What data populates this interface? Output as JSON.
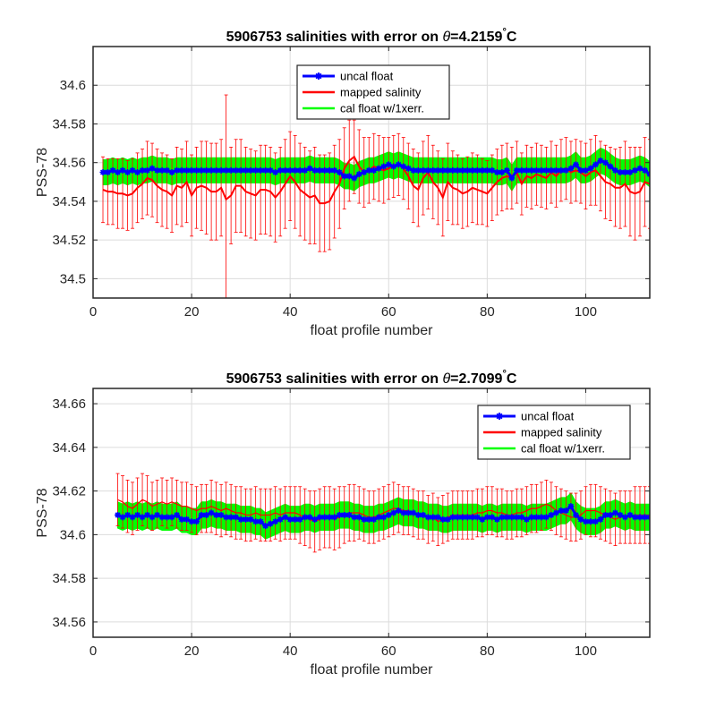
{
  "chart_data": [
    {
      "type": "line",
      "title_prefix": "5906753 salinities with error on ",
      "title_theta": "θ",
      "title_value": "=4.2159",
      "title_degree": "°",
      "title_unit": "C",
      "xlabel": "float profile number",
      "ylabel": "PSS-78",
      "xlim": [
        0,
        113
      ],
      "ylim": [
        34.49,
        34.62
      ],
      "xticks": [
        "0",
        "20",
        "40",
        "60",
        "80",
        "100"
      ],
      "yticks": [
        "34.5",
        "34.52",
        "34.54",
        "34.56",
        "34.58",
        "34.6"
      ],
      "grid": true,
      "legend_position": "top-center",
      "x": [
        2,
        3,
        4,
        5,
        6,
        7,
        8,
        9,
        10,
        11,
        12,
        13,
        14,
        15,
        16,
        17,
        18,
        19,
        20,
        21,
        22,
        23,
        24,
        25,
        26,
        27,
        28,
        29,
        30,
        31,
        32,
        33,
        34,
        35,
        36,
        37,
        38,
        39,
        40,
        41,
        42,
        43,
        44,
        45,
        46,
        47,
        48,
        49,
        50,
        51,
        52,
        53,
        54,
        55,
        56,
        57,
        58,
        59,
        60,
        61,
        62,
        63,
        64,
        65,
        66,
        67,
        68,
        69,
        70,
        71,
        72,
        73,
        74,
        75,
        76,
        77,
        78,
        79,
        80,
        81,
        82,
        83,
        84,
        85,
        86,
        87,
        88,
        89,
        90,
        91,
        92,
        93,
        94,
        95,
        96,
        97,
        98,
        99,
        100,
        101,
        102,
        103,
        104,
        105,
        106,
        107,
        108,
        109,
        110,
        111,
        112,
        113
      ],
      "series": [
        {
          "name": "uncal float",
          "color": "#0000ff",
          "values": [
            34.555,
            34.555,
            34.556,
            34.555,
            34.556,
            34.555,
            34.556,
            34.555,
            34.556,
            34.556,
            34.557,
            34.556,
            34.556,
            34.556,
            34.555,
            34.556,
            34.556,
            34.556,
            34.556,
            34.556,
            34.556,
            34.556,
            34.556,
            34.556,
            34.556,
            34.556,
            34.556,
            34.556,
            34.556,
            34.556,
            34.556,
            34.556,
            34.556,
            34.556,
            34.556,
            34.555,
            34.556,
            34.556,
            34.556,
            34.556,
            34.556,
            34.556,
            34.557,
            34.556,
            34.556,
            34.556,
            34.556,
            34.556,
            34.555,
            34.553,
            34.553,
            34.552,
            34.554,
            34.555,
            34.556,
            34.556,
            34.557,
            34.558,
            34.559,
            34.558,
            34.559,
            34.558,
            34.557,
            34.556,
            34.556,
            34.556,
            34.556,
            34.556,
            34.556,
            34.556,
            34.556,
            34.556,
            34.556,
            34.556,
            34.556,
            34.556,
            34.556,
            34.556,
            34.556,
            34.556,
            34.555,
            34.555,
            34.556,
            34.552,
            34.556,
            34.556,
            34.556,
            34.556,
            34.556,
            34.556,
            34.556,
            34.556,
            34.556,
            34.556,
            34.556,
            34.557,
            34.559,
            34.556,
            34.556,
            34.557,
            34.559,
            34.561,
            34.56,
            34.558,
            34.556,
            34.555,
            34.555,
            34.555,
            34.556,
            34.557,
            34.556,
            34.554
          ],
          "band_halfwidth": 0.0065
        },
        {
          "name": "mapped salinity",
          "color": "#ff0000",
          "values": [
            34.546,
            34.545,
            34.545,
            34.544,
            34.544,
            34.543,
            34.544,
            34.547,
            34.549,
            34.552,
            34.551,
            34.548,
            34.546,
            34.545,
            34.543,
            34.548,
            34.547,
            34.55,
            34.543,
            34.547,
            34.548,
            34.547,
            34.545,
            34.545,
            34.547,
            34.541,
            34.543,
            34.548,
            34.548,
            34.545,
            34.544,
            34.543,
            34.546,
            34.546,
            34.545,
            34.542,
            34.545,
            34.549,
            34.553,
            34.55,
            34.546,
            34.544,
            34.542,
            34.543,
            34.539,
            34.539,
            34.54,
            34.545,
            34.549,
            34.557,
            34.561,
            34.563,
            34.558,
            34.555,
            34.556,
            34.558,
            34.557,
            34.556,
            34.557,
            34.558,
            34.559,
            34.557,
            34.553,
            34.548,
            34.546,
            34.552,
            34.555,
            34.55,
            34.547,
            34.542,
            34.55,
            34.547,
            34.546,
            34.544,
            34.545,
            34.547,
            34.546,
            34.545,
            34.544,
            34.547,
            34.55,
            34.552,
            34.553,
            34.552,
            34.555,
            34.549,
            34.553,
            34.552,
            34.554,
            34.553,
            34.552,
            34.555,
            34.553,
            34.556,
            34.557,
            34.555,
            34.556,
            34.555,
            34.553,
            34.555,
            34.556,
            34.553,
            34.55,
            34.549,
            34.547,
            34.547,
            34.549,
            34.545,
            34.544,
            34.545,
            34.55,
            34.549
          ],
          "error": [
            0.017,
            0.017,
            0.017,
            0.018,
            0.018,
            0.018,
            0.018,
            0.018,
            0.018,
            0.019,
            0.019,
            0.019,
            0.019,
            0.019,
            0.019,
            0.02,
            0.02,
            0.021,
            0.021,
            0.021,
            0.023,
            0.024,
            0.025,
            0.025,
            0.025,
            0.024,
            0.025,
            0.024,
            0.024,
            0.023,
            0.023,
            0.023,
            0.023,
            0.023,
            0.023,
            0.023,
            0.023,
            0.023,
            0.023,
            0.024,
            0.024,
            0.024,
            0.024,
            0.025,
            0.025,
            0.025,
            0.025,
            0.024,
            0.023,
            0.021,
            0.021,
            0.019,
            0.019,
            0.018,
            0.017,
            0.017,
            0.017,
            0.017,
            0.016,
            0.016,
            0.016,
            0.016,
            0.017,
            0.019,
            0.019,
            0.019,
            0.019,
            0.019,
            0.019,
            0.02,
            0.02,
            0.019,
            0.018,
            0.018,
            0.018,
            0.018,
            0.018,
            0.017,
            0.017,
            0.017,
            0.017,
            0.017,
            0.017,
            0.016,
            0.016,
            0.016,
            0.016,
            0.016,
            0.016,
            0.016,
            0.016,
            0.016,
            0.016,
            0.016,
            0.016,
            0.016,
            0.016,
            0.016,
            0.017,
            0.017,
            0.018,
            0.018,
            0.019,
            0.019,
            0.02,
            0.021,
            0.022,
            0.023,
            0.024,
            0.023,
            0.023,
            0.023
          ],
          "outlier": {
            "x": 27,
            "low": 34.487,
            "high": 34.595
          }
        },
        {
          "name": "cal float w/1xerr.",
          "color": "#00ff00"
        }
      ]
    },
    {
      "type": "line",
      "title_prefix": "5906753 salinities with error on ",
      "title_theta": "θ",
      "title_value": "=2.7099",
      "title_degree": "°",
      "title_unit": "C",
      "xlabel": "float profile number",
      "ylabel": "PSS-78",
      "xlim": [
        0,
        113
      ],
      "ylim": [
        34.553,
        34.667
      ],
      "xticks": [
        "0",
        "20",
        "40",
        "60",
        "80",
        "100"
      ],
      "yticks": [
        "34.56",
        "34.58",
        "34.6",
        "34.62",
        "34.64",
        "34.66"
      ],
      "grid": true,
      "legend_position": "top-right",
      "x": [
        5,
        6,
        7,
        8,
        9,
        10,
        11,
        12,
        13,
        14,
        15,
        16,
        17,
        18,
        19,
        20,
        21,
        22,
        23,
        24,
        25,
        26,
        27,
        28,
        29,
        30,
        31,
        32,
        33,
        34,
        35,
        36,
        37,
        38,
        39,
        40,
        41,
        42,
        43,
        44,
        45,
        46,
        47,
        48,
        49,
        50,
        51,
        52,
        53,
        54,
        55,
        56,
        57,
        58,
        59,
        60,
        61,
        62,
        63,
        64,
        65,
        66,
        67,
        68,
        69,
        70,
        71,
        72,
        73,
        74,
        75,
        76,
        77,
        78,
        79,
        80,
        81,
        82,
        83,
        84,
        85,
        86,
        87,
        88,
        89,
        90,
        91,
        92,
        93,
        94,
        95,
        96,
        97,
        98,
        99,
        100,
        101,
        102,
        103,
        104,
        105,
        106,
        107,
        108,
        109,
        110,
        111,
        112,
        113
      ],
      "series": [
        {
          "name": "uncal float",
          "color": "#0000ff",
          "values": [
            34.609,
            34.608,
            34.609,
            34.608,
            34.609,
            34.608,
            34.609,
            34.608,
            34.609,
            34.608,
            34.608,
            34.608,
            34.609,
            34.607,
            34.607,
            34.606,
            34.606,
            34.609,
            34.609,
            34.61,
            34.609,
            34.609,
            34.608,
            34.608,
            34.608,
            34.607,
            34.607,
            34.607,
            34.606,
            34.606,
            34.604,
            34.605,
            34.606,
            34.607,
            34.608,
            34.607,
            34.607,
            34.607,
            34.608,
            34.608,
            34.607,
            34.608,
            34.608,
            34.608,
            34.608,
            34.609,
            34.609,
            34.609,
            34.608,
            34.608,
            34.607,
            34.607,
            34.607,
            34.608,
            34.608,
            34.609,
            34.61,
            34.611,
            34.61,
            34.61,
            34.61,
            34.609,
            34.609,
            34.608,
            34.608,
            34.608,
            34.607,
            34.607,
            34.608,
            34.608,
            34.608,
            34.608,
            34.608,
            34.608,
            34.607,
            34.608,
            34.608,
            34.607,
            34.608,
            34.608,
            34.608,
            34.608,
            34.608,
            34.607,
            34.608,
            34.608,
            34.608,
            34.608,
            34.609,
            34.61,
            34.611,
            34.611,
            34.613,
            34.609,
            34.607,
            34.606,
            34.606,
            34.606,
            34.607,
            34.609,
            34.609,
            34.61,
            34.609,
            34.608,
            34.609,
            34.608,
            34.608,
            34.608,
            34.608
          ],
          "band_halfwidth": 0.006
        },
        {
          "name": "mapped salinity",
          "color": "#ff0000",
          "values": [
            34.616,
            34.615,
            34.613,
            34.612,
            34.614,
            34.616,
            34.615,
            34.613,
            34.614,
            34.615,
            34.614,
            34.615,
            34.614,
            34.613,
            34.613,
            34.612,
            34.611,
            34.612,
            34.612,
            34.613,
            34.612,
            34.611,
            34.612,
            34.611,
            34.61,
            34.61,
            34.609,
            34.609,
            34.61,
            34.609,
            34.609,
            34.609,
            34.61,
            34.609,
            34.61,
            34.61,
            34.61,
            34.609,
            34.608,
            34.607,
            34.606,
            34.607,
            34.608,
            34.608,
            34.607,
            34.608,
            34.609,
            34.61,
            34.61,
            34.61,
            34.609,
            34.608,
            34.608,
            34.609,
            34.61,
            34.611,
            34.612,
            34.612,
            34.611,
            34.611,
            34.61,
            34.609,
            34.609,
            34.607,
            34.608,
            34.606,
            34.607,
            34.608,
            34.609,
            34.609,
            34.609,
            34.609,
            34.609,
            34.61,
            34.61,
            34.611,
            34.611,
            34.61,
            34.61,
            34.609,
            34.609,
            34.61,
            34.61,
            34.611,
            34.612,
            34.612,
            34.613,
            34.614,
            34.613,
            34.611,
            34.61,
            34.609,
            34.608,
            34.608,
            34.609,
            34.611,
            34.611,
            34.611,
            34.61,
            34.609,
            34.608,
            34.607,
            34.608,
            34.608,
            34.608,
            34.609,
            34.609,
            34.609,
            34.609
          ],
          "error": [
            0.012,
            0.012,
            0.012,
            0.012,
            0.012,
            0.012,
            0.012,
            0.011,
            0.011,
            0.011,
            0.011,
            0.011,
            0.011,
            0.011,
            0.011,
            0.011,
            0.011,
            0.011,
            0.011,
            0.012,
            0.012,
            0.012,
            0.012,
            0.012,
            0.012,
            0.012,
            0.012,
            0.012,
            0.012,
            0.012,
            0.012,
            0.012,
            0.012,
            0.012,
            0.012,
            0.012,
            0.012,
            0.013,
            0.013,
            0.013,
            0.014,
            0.014,
            0.014,
            0.014,
            0.014,
            0.014,
            0.013,
            0.013,
            0.013,
            0.012,
            0.012,
            0.012,
            0.012,
            0.012,
            0.012,
            0.012,
            0.012,
            0.011,
            0.011,
            0.011,
            0.011,
            0.011,
            0.011,
            0.011,
            0.011,
            0.011,
            0.011,
            0.011,
            0.011,
            0.011,
            0.011,
            0.011,
            0.011,
            0.011,
            0.011,
            0.011,
            0.011,
            0.011,
            0.011,
            0.011,
            0.011,
            0.011,
            0.011,
            0.011,
            0.011,
            0.011,
            0.011,
            0.011,
            0.011,
            0.011,
            0.011,
            0.011,
            0.011,
            0.011,
            0.011,
            0.011,
            0.012,
            0.012,
            0.012,
            0.012,
            0.012,
            0.012,
            0.012,
            0.012,
            0.012,
            0.013,
            0.013,
            0.013,
            0.013
          ]
        },
        {
          "name": "cal float w/1xerr.",
          "color": "#00ff00"
        }
      ]
    }
  ]
}
